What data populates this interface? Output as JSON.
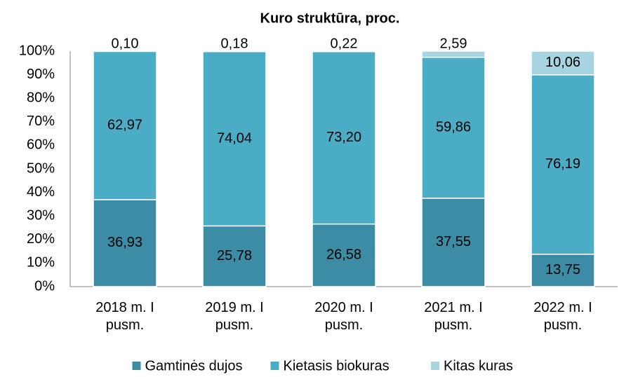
{
  "chart_data": {
    "type": "stacked-bar",
    "title": "Kuro struktūra, proc.",
    "categories": [
      "2018 m. I pusm.",
      "2019 m. I pusm.",
      "2020 m. I pusm.",
      "2021 m. I pusm.",
      "2022 m. I pusm."
    ],
    "series": [
      {
        "name": "Gamtinės dujos",
        "color": "#3b8ca4",
        "values": [
          36.93,
          25.78,
          26.58,
          37.55,
          13.75
        ],
        "value_labels": [
          "36,93",
          "25,78",
          "26,58",
          "37,55",
          "13,75"
        ]
      },
      {
        "name": "Kietasis biokuras",
        "color": "#4bacc6",
        "values": [
          62.97,
          74.04,
          73.2,
          59.86,
          76.19
        ],
        "value_labels": [
          "62,97",
          "74,04",
          "73,20",
          "59,86",
          "76,19"
        ]
      },
      {
        "name": "Kitas kuras",
        "color": "#a7d4e1",
        "values": [
          0.1,
          0.18,
          0.22,
          2.59,
          10.06
        ],
        "value_labels": [
          "0,10",
          "0,18",
          "0,22",
          "2,59",
          "10,06"
        ]
      }
    ],
    "ylim": [
      0,
      100
    ],
    "yticks": [
      {
        "value": 0,
        "label": "0%"
      },
      {
        "value": 10,
        "label": "10%"
      },
      {
        "value": 20,
        "label": "20%"
      },
      {
        "value": 30,
        "label": "30%"
      },
      {
        "value": 40,
        "label": "40%"
      },
      {
        "value": 50,
        "label": "50%"
      },
      {
        "value": 60,
        "label": "60%"
      },
      {
        "value": 70,
        "label": "70%"
      },
      {
        "value": 80,
        "label": "80%"
      },
      {
        "value": 90,
        "label": "90%"
      },
      {
        "value": 100,
        "label": "100%"
      }
    ],
    "grid": false,
    "legend": "bottom"
  }
}
